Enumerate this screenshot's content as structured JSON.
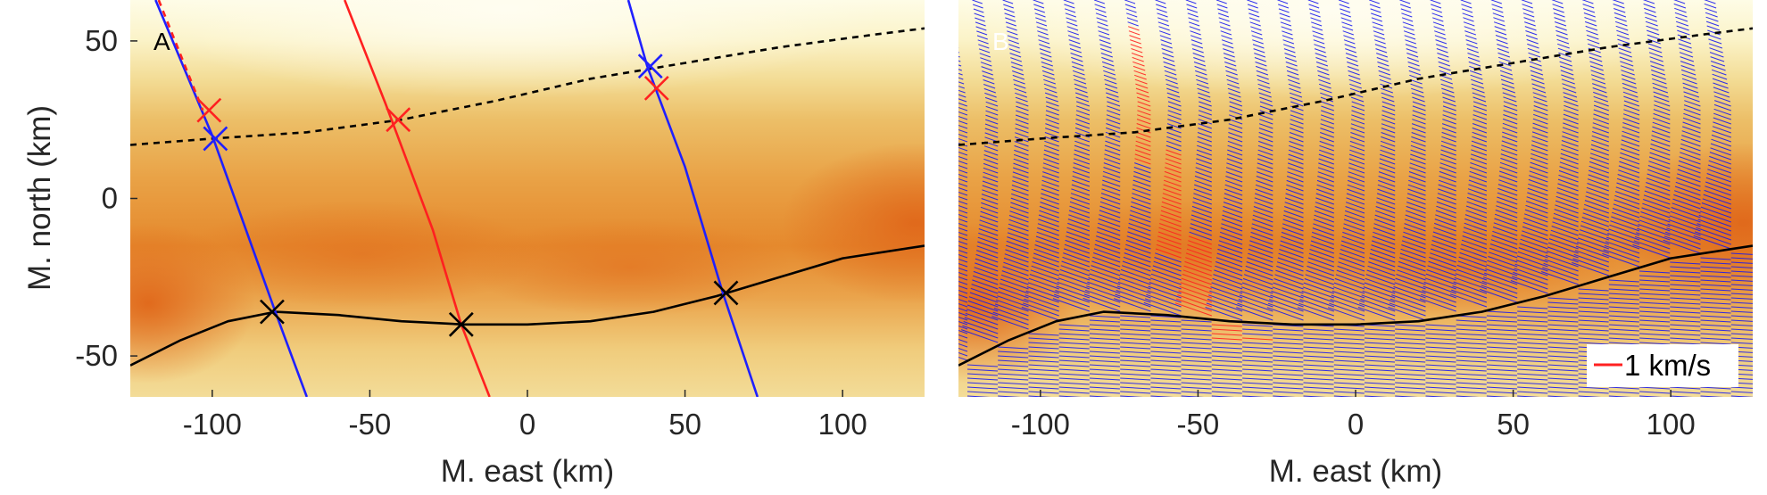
{
  "chart_data": [
    {
      "type": "heatmap",
      "panel_label": "A",
      "xlabel": "M. east (km)",
      "ylabel": "M. north (km)",
      "xlim": [
        -126,
        126
      ],
      "ylim": [
        -63,
        63
      ],
      "xticks": [
        -100,
        -50,
        0,
        50,
        100
      ],
      "yticks": [
        -50,
        0,
        50
      ],
      "colormap": [
        "#fefce6",
        "#f4de9c",
        "#ebb95e",
        "#e89a3c",
        "#e37a22"
      ],
      "lines": [
        {
          "style": "dashed",
          "color": "#000000",
          "x": [
            -126,
            -100,
            -70,
            -40,
            -10,
            20,
            50,
            80,
            110,
            126
          ],
          "y": [
            17,
            19,
            21,
            25,
            31,
            38,
            43,
            48,
            52,
            54
          ]
        },
        {
          "style": "solid",
          "color": "#000000",
          "x": [
            -126,
            -110,
            -95,
            -80,
            -60,
            -40,
            -20,
            0,
            20,
            40,
            60,
            80,
            100,
            126
          ],
          "y": [
            -53,
            -45,
            -39,
            -36,
            -37,
            -39,
            -40,
            -40,
            -39,
            -36,
            -31,
            -25,
            -19,
            -15
          ]
        },
        {
          "style": "solid",
          "color": "#2020ff",
          "x": [
            -118,
            -100,
            -80,
            -70
          ],
          "y": [
            63,
            20,
            -36,
            -63
          ]
        },
        {
          "style": "dashed",
          "color": "#ff2020",
          "x": [
            -117,
            -103
          ],
          "y": [
            63,
            28
          ]
        },
        {
          "style": "solid",
          "color": "#ff2020",
          "x": [
            -58,
            -45,
            -30,
            -21,
            -12
          ],
          "y": [
            63,
            30,
            -10,
            -40,
            -63
          ]
        },
        {
          "style": "solid",
          "color": "#2020ff",
          "x": [
            32,
            38,
            50,
            62,
            73
          ],
          "y": [
            63,
            42,
            10,
            -30,
            -63
          ]
        }
      ],
      "markers": [
        {
          "x": -101,
          "y": 28,
          "color": "#ff2020"
        },
        {
          "x": -99,
          "y": 19,
          "color": "#2020ff"
        },
        {
          "x": -41,
          "y": 25,
          "color": "#ff2020"
        },
        {
          "x": 39,
          "y": 42,
          "color": "#2020ff"
        },
        {
          "x": 41,
          "y": 35,
          "color": "#ff2020"
        },
        {
          "x": -81,
          "y": -36,
          "color": "#000000"
        },
        {
          "x": -21,
          "y": -40,
          "color": "#000000"
        },
        {
          "x": 63,
          "y": -30,
          "color": "#000000"
        }
      ]
    },
    {
      "type": "heatmap",
      "panel_label": "B",
      "xlabel": "M. east (km)",
      "xlim": [
        -126,
        126
      ],
      "ylim": [
        -63,
        63
      ],
      "xticks": [
        -100,
        -50,
        0,
        50,
        100
      ],
      "legend": {
        "label": "1 km/s",
        "color": "#ff2020",
        "position": "bottom-right"
      },
      "vector_field": {
        "color": "#1a1aee",
        "highlight_color": "#ff2020",
        "highlight_x_range": [
          -66,
          -16
        ]
      }
    }
  ]
}
